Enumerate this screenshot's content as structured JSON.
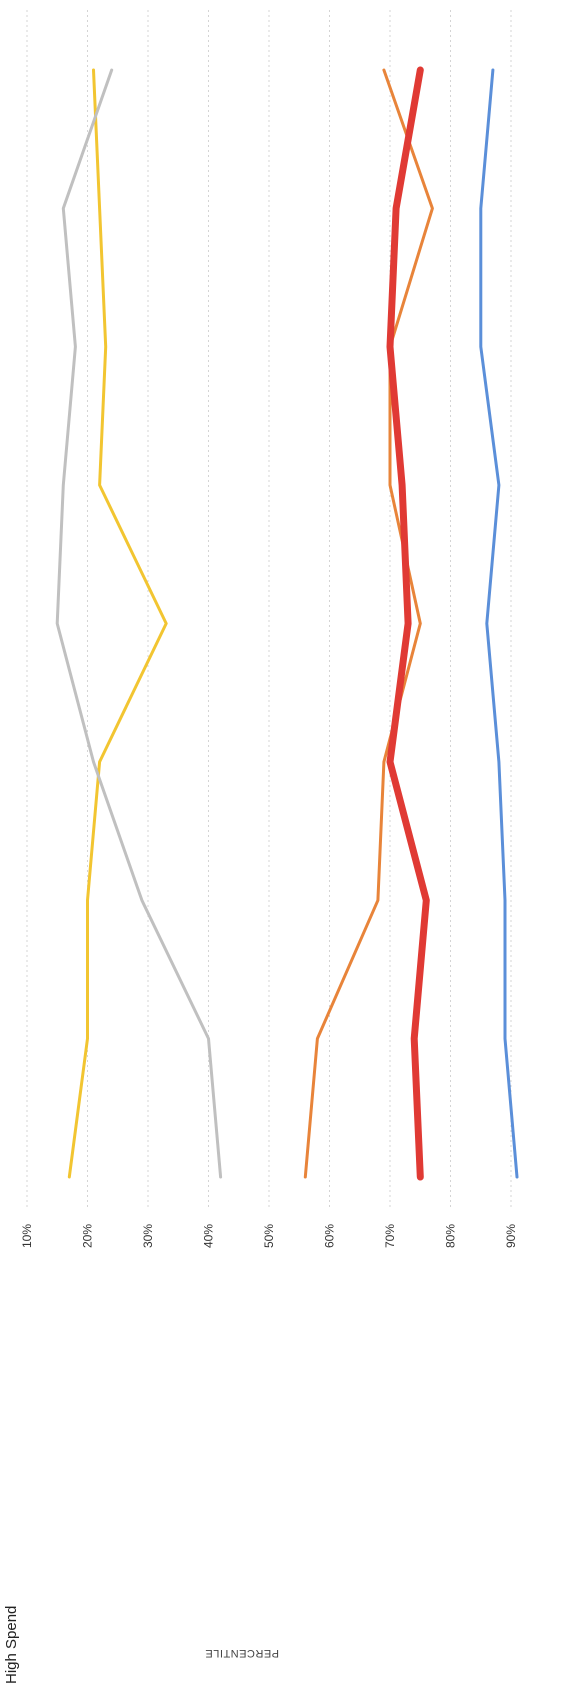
{
  "chart_data": {
    "type": "line",
    "title": "High Spend",
    "ylabel": "PERCENTILE",
    "xlabel": "",
    "ylim": [
      0.07,
      0.93
    ],
    "y_ticks": [
      {
        "value": 0.1,
        "label": "10%"
      },
      {
        "value": 0.2,
        "label": "20%"
      },
      {
        "value": 0.3,
        "label": "30%"
      },
      {
        "value": 0.4,
        "label": "40%"
      },
      {
        "value": 0.5,
        "label": "50%"
      },
      {
        "value": 0.6,
        "label": "60%"
      },
      {
        "value": 0.7,
        "label": "70%"
      },
      {
        "value": 0.8,
        "label": "80%"
      },
      {
        "value": 0.9,
        "label": "90%"
      }
    ],
    "x": [
      1,
      2,
      3,
      4,
      5,
      6,
      7,
      8,
      9
    ],
    "grid": true,
    "orientation": "rotated-90-clockwise",
    "series": [
      {
        "color": "#f2c531",
        "width": 3,
        "values": [
          0.17,
          0.2,
          0.2,
          0.22,
          0.33,
          0.22,
          0.23,
          0.22,
          0.21
        ]
      },
      {
        "color": "#c0c0c0",
        "width": 3,
        "values": [
          0.42,
          0.4,
          0.29,
          0.21,
          0.15,
          0.16,
          0.18,
          0.16,
          0.24
        ]
      },
      {
        "color": "#e8843a",
        "width": 3,
        "values": [
          0.56,
          0.58,
          0.68,
          0.69,
          0.75,
          0.7,
          0.7,
          0.77,
          0.69
        ]
      },
      {
        "color": "#e03a34",
        "width": 7,
        "values": [
          0.75,
          0.74,
          0.76,
          0.7,
          0.73,
          0.72,
          0.7,
          0.71,
          0.75
        ]
      },
      {
        "color": "#5b8fd9",
        "width": 3,
        "values": [
          0.91,
          0.89,
          0.89,
          0.88,
          0.86,
          0.88,
          0.85,
          0.85,
          0.87
        ]
      }
    ]
  }
}
